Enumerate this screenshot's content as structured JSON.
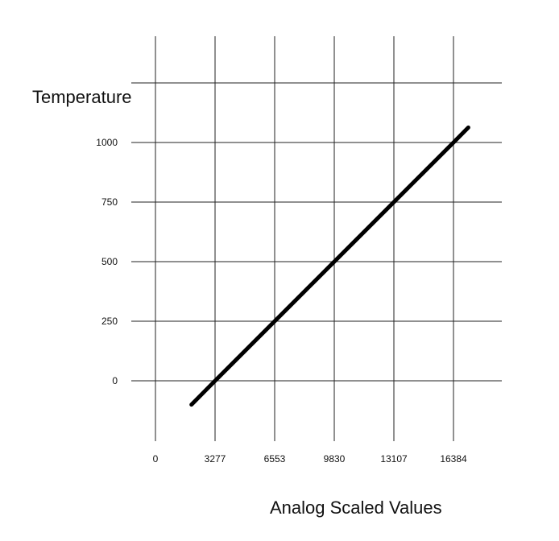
{
  "chart_data": {
    "type": "line",
    "title": "",
    "xlabel": "Analog Scaled Values",
    "ylabel": "Temperature",
    "xlim": [
      0,
      20000
    ],
    "ylim": [
      -250,
      1250
    ],
    "x_ticks": [
      0,
      3277,
      6553,
      9830,
      13107,
      16384
    ],
    "x_tick_labels": [
      "0",
      "3277",
      "6553",
      "9830",
      "13107",
      "16384"
    ],
    "y_ticks": [
      0,
      250,
      500,
      750,
      1000
    ],
    "y_tick_labels": [
      "0",
      "250",
      "500",
      "750",
      "1000"
    ],
    "grid": true,
    "legend": "none",
    "series": [
      {
        "x": [
          1980,
          3277,
          6553,
          9830,
          13107,
          16384,
          17200
        ],
        "y": [
          -100,
          0,
          250,
          500,
          750,
          1000,
          1063
        ],
        "color": "#000000"
      }
    ]
  }
}
